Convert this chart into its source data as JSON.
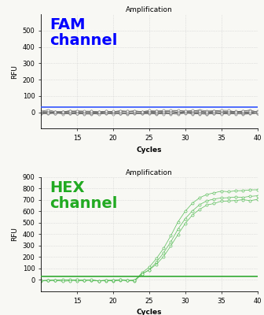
{
  "title": "Amplification",
  "xlabel": "Cycles",
  "ylabel": "RFU",
  "fam_label": "FAM\nchannel",
  "hex_label": "HEX\nchannel",
  "threshold_fam_color": "#3355ff",
  "threshold_hex_color": "#33aa33",
  "fam_ylim": [
    -100,
    600
  ],
  "hex_ylim": [
    -100,
    900
  ],
  "fam_yticks": [
    0,
    100,
    200,
    300,
    400,
    500
  ],
  "hex_yticks": [
    0,
    100,
    200,
    300,
    400,
    500,
    600,
    700,
    800,
    900
  ],
  "xlim": [
    10,
    40
  ],
  "xticks": [
    15,
    20,
    25,
    30,
    35,
    40
  ],
  "fam_threshold": 30,
  "hex_threshold": 30,
  "line_color_fam": "#666666",
  "line_color_hex": "#55bb55",
  "marker_color_fam": "#888888",
  "marker_color_hex": "#55bb55",
  "background_color": "#f8f8f4",
  "grid_color": "#cccccc",
  "fam_text_color": "#0000ff",
  "hex_text_color": "#22aa22"
}
